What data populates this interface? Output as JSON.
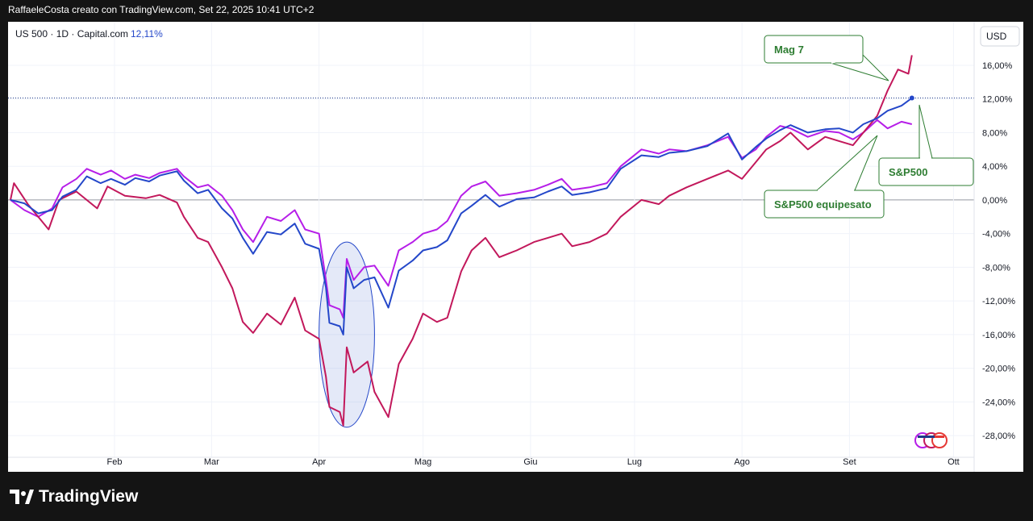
{
  "header": {
    "caption": "RaffaeleCosta creato con TradingView.com, Set 22, 2025 10:41 UTC+2"
  },
  "footer": {
    "brand": "TradingView"
  },
  "chart_data": {
    "type": "line",
    "symbol_line": "US 500 · 1D · Capital.com",
    "symbol_change": "12,11%",
    "currency_label": "USD",
    "y_unit": "%",
    "ylim": [
      -30,
      20.5
    ],
    "y_ticks": [
      {
        "value": 16,
        "label": "16,00%"
      },
      {
        "value": 12,
        "label": "12,00%"
      },
      {
        "value": 8,
        "label": "8,00%"
      },
      {
        "value": 4,
        "label": "4,00%"
      },
      {
        "value": 0,
        "label": "0,00%"
      },
      {
        "value": -4,
        "label": "-4,00%"
      },
      {
        "value": -8,
        "label": "-8,00%"
      },
      {
        "value": -12,
        "label": "-12,00%"
      },
      {
        "value": -16,
        "label": "-16,00%"
      },
      {
        "value": -20,
        "label": "-20,00%"
      },
      {
        "value": -24,
        "label": "-24,00%"
      },
      {
        "value": -28,
        "label": "-28,00%"
      }
    ],
    "x_range": [
      "2025-01-02",
      "2025-10-03"
    ],
    "x_ticks": [
      {
        "date": "2025-02-01",
        "label": "Feb"
      },
      {
        "date": "2025-03-01",
        "label": "Mar"
      },
      {
        "date": "2025-04-01",
        "label": "Apr"
      },
      {
        "date": "2025-05-01",
        "label": "Mag"
      },
      {
        "date": "2025-06-01",
        "label": "Giu"
      },
      {
        "date": "2025-07-01",
        "label": "Lug"
      },
      {
        "date": "2025-08-01",
        "label": "Ago"
      },
      {
        "date": "2025-09-01",
        "label": "Set"
      },
      {
        "date": "2025-10-01",
        "label": "Ott"
      }
    ],
    "price_line": {
      "value": 12.11,
      "color": "#1e3a8a"
    },
    "series": [
      {
        "name": "S&P500",
        "color": "#2447c9",
        "points": [
          [
            "2025-01-02",
            0
          ],
          [
            "2025-01-06",
            -0.4
          ],
          [
            "2025-01-10",
            -1.6
          ],
          [
            "2025-01-14",
            -1.2
          ],
          [
            "2025-01-17",
            0.4
          ],
          [
            "2025-01-21",
            1.2
          ],
          [
            "2025-01-24",
            2.8
          ],
          [
            "2025-01-28",
            2.0
          ],
          [
            "2025-01-31",
            2.5
          ],
          [
            "2025-02-04",
            1.8
          ],
          [
            "2025-02-07",
            2.6
          ],
          [
            "2025-02-11",
            2.2
          ],
          [
            "2025-02-14",
            2.9
          ],
          [
            "2025-02-19",
            3.4
          ],
          [
            "2025-02-21",
            2.3
          ],
          [
            "2025-02-25",
            0.8
          ],
          [
            "2025-02-28",
            1.2
          ],
          [
            "2025-03-04",
            -1.0
          ],
          [
            "2025-03-07",
            -2.2
          ],
          [
            "2025-03-10",
            -4.5
          ],
          [
            "2025-03-13",
            -6.4
          ],
          [
            "2025-03-17",
            -3.8
          ],
          [
            "2025-03-21",
            -4.1
          ],
          [
            "2025-03-25",
            -2.8
          ],
          [
            "2025-03-28",
            -5.2
          ],
          [
            "2025-04-01",
            -5.8
          ],
          [
            "2025-04-03",
            -10.4
          ],
          [
            "2025-04-04",
            -14.6
          ],
          [
            "2025-04-07",
            -15.0
          ],
          [
            "2025-04-08",
            -16.0
          ],
          [
            "2025-04-09",
            -8.0
          ],
          [
            "2025-04-11",
            -10.5
          ],
          [
            "2025-04-14",
            -9.5
          ],
          [
            "2025-04-17",
            -9.2
          ],
          [
            "2025-04-21",
            -12.8
          ],
          [
            "2025-04-24",
            -8.4
          ],
          [
            "2025-04-28",
            -7.2
          ],
          [
            "2025-05-01",
            -6.0
          ],
          [
            "2025-05-05",
            -5.6
          ],
          [
            "2025-05-08",
            -4.8
          ],
          [
            "2025-05-12",
            -1.6
          ],
          [
            "2025-05-15",
            -0.7
          ],
          [
            "2025-05-19",
            0.6
          ],
          [
            "2025-05-23",
            -0.8
          ],
          [
            "2025-05-28",
            0.1
          ],
          [
            "2025-06-02",
            0.3
          ],
          [
            "2025-06-06",
            1.0
          ],
          [
            "2025-06-10",
            1.6
          ],
          [
            "2025-06-13",
            0.6
          ],
          [
            "2025-06-18",
            0.9
          ],
          [
            "2025-06-23",
            1.4
          ],
          [
            "2025-06-27",
            3.7
          ],
          [
            "2025-07-03",
            5.3
          ],
          [
            "2025-07-08",
            5.1
          ],
          [
            "2025-07-11",
            5.6
          ],
          [
            "2025-07-16",
            5.8
          ],
          [
            "2025-07-22",
            6.4
          ],
          [
            "2025-07-28",
            7.9
          ],
          [
            "2025-08-01",
            4.8
          ],
          [
            "2025-08-05",
            6.3
          ],
          [
            "2025-08-08",
            7.3
          ],
          [
            "2025-08-12",
            8.3
          ],
          [
            "2025-08-15",
            8.9
          ],
          [
            "2025-08-20",
            8.0
          ],
          [
            "2025-08-25",
            8.4
          ],
          [
            "2025-08-29",
            8.5
          ],
          [
            "2025-09-02",
            8.0
          ],
          [
            "2025-09-05",
            9.0
          ],
          [
            "2025-09-09",
            9.7
          ],
          [
            "2025-09-12",
            10.6
          ],
          [
            "2025-09-16",
            11.2
          ],
          [
            "2025-09-19",
            12.11
          ]
        ]
      },
      {
        "name": "Mag 7",
        "color": "#c2185b",
        "points": [
          [
            "2025-01-02",
            0
          ],
          [
            "2025-01-03",
            2.0
          ],
          [
            "2025-01-07",
            -0.5
          ],
          [
            "2025-01-13",
            -3.5
          ],
          [
            "2025-01-16",
            0.0
          ],
          [
            "2025-01-21",
            1.0
          ],
          [
            "2025-01-27",
            -1.0
          ],
          [
            "2025-01-30",
            1.6
          ],
          [
            "2025-02-04",
            0.5
          ],
          [
            "2025-02-10",
            0.2
          ],
          [
            "2025-02-14",
            0.6
          ],
          [
            "2025-02-19",
            -0.3
          ],
          [
            "2025-02-21",
            -2.0
          ],
          [
            "2025-02-25",
            -4.5
          ],
          [
            "2025-02-28",
            -5.0
          ],
          [
            "2025-03-04",
            -8.0
          ],
          [
            "2025-03-07",
            -10.5
          ],
          [
            "2025-03-10",
            -14.5
          ],
          [
            "2025-03-13",
            -15.8
          ],
          [
            "2025-03-17",
            -13.5
          ],
          [
            "2025-03-21",
            -14.8
          ],
          [
            "2025-03-25",
            -11.6
          ],
          [
            "2025-03-28",
            -15.5
          ],
          [
            "2025-04-01",
            -16.5
          ],
          [
            "2025-04-03",
            -21.0
          ],
          [
            "2025-04-04",
            -24.6
          ],
          [
            "2025-04-07",
            -25.2
          ],
          [
            "2025-04-08",
            -26.8
          ],
          [
            "2025-04-09",
            -17.5
          ],
          [
            "2025-04-11",
            -20.5
          ],
          [
            "2025-04-15",
            -19.2
          ],
          [
            "2025-04-17",
            -22.8
          ],
          [
            "2025-04-21",
            -25.8
          ],
          [
            "2025-04-24",
            -19.5
          ],
          [
            "2025-04-28",
            -16.5
          ],
          [
            "2025-05-01",
            -13.5
          ],
          [
            "2025-05-05",
            -14.5
          ],
          [
            "2025-05-08",
            -14.0
          ],
          [
            "2025-05-12",
            -8.5
          ],
          [
            "2025-05-15",
            -6.0
          ],
          [
            "2025-05-19",
            -4.5
          ],
          [
            "2025-05-23",
            -6.8
          ],
          [
            "2025-05-28",
            -6.0
          ],
          [
            "2025-06-02",
            -5.0
          ],
          [
            "2025-06-06",
            -4.5
          ],
          [
            "2025-06-10",
            -4.0
          ],
          [
            "2025-06-13",
            -5.5
          ],
          [
            "2025-06-18",
            -5.0
          ],
          [
            "2025-06-23",
            -4.0
          ],
          [
            "2025-06-27",
            -2.0
          ],
          [
            "2025-07-03",
            0.0
          ],
          [
            "2025-07-08",
            -0.5
          ],
          [
            "2025-07-11",
            0.5
          ],
          [
            "2025-07-16",
            1.5
          ],
          [
            "2025-07-22",
            2.5
          ],
          [
            "2025-07-28",
            3.5
          ],
          [
            "2025-08-01",
            2.5
          ],
          [
            "2025-08-05",
            4.5
          ],
          [
            "2025-08-08",
            6.0
          ],
          [
            "2025-08-12",
            7.0
          ],
          [
            "2025-08-15",
            8.0
          ],
          [
            "2025-08-20",
            6.0
          ],
          [
            "2025-08-25",
            7.5
          ],
          [
            "2025-08-29",
            7.0
          ],
          [
            "2025-09-02",
            6.5
          ],
          [
            "2025-09-05",
            8.0
          ],
          [
            "2025-09-09",
            10.0
          ],
          [
            "2025-09-12",
            13.0
          ],
          [
            "2025-09-15",
            15.5
          ],
          [
            "2025-09-18",
            15.0
          ],
          [
            "2025-09-19",
            17.2
          ]
        ]
      },
      {
        "name": "S&P500 equipesato",
        "color": "#b61ee8",
        "points": [
          [
            "2025-01-02",
            0
          ],
          [
            "2025-01-06",
            -1.2
          ],
          [
            "2025-01-10",
            -2.0
          ],
          [
            "2025-01-14",
            -1.0
          ],
          [
            "2025-01-17",
            1.5
          ],
          [
            "2025-01-21",
            2.5
          ],
          [
            "2025-01-24",
            3.7
          ],
          [
            "2025-01-28",
            3.0
          ],
          [
            "2025-01-31",
            3.5
          ],
          [
            "2025-02-04",
            2.5
          ],
          [
            "2025-02-07",
            3.0
          ],
          [
            "2025-02-11",
            2.6
          ],
          [
            "2025-02-14",
            3.2
          ],
          [
            "2025-02-19",
            3.7
          ],
          [
            "2025-02-21",
            2.8
          ],
          [
            "2025-02-25",
            1.5
          ],
          [
            "2025-02-28",
            1.8
          ],
          [
            "2025-03-04",
            0.5
          ],
          [
            "2025-03-07",
            -1.2
          ],
          [
            "2025-03-10",
            -3.5
          ],
          [
            "2025-03-13",
            -5.0
          ],
          [
            "2025-03-17",
            -2.0
          ],
          [
            "2025-03-21",
            -2.5
          ],
          [
            "2025-03-25",
            -1.2
          ],
          [
            "2025-03-28",
            -3.5
          ],
          [
            "2025-04-01",
            -4.0
          ],
          [
            "2025-04-03",
            -9.5
          ],
          [
            "2025-04-04",
            -12.5
          ],
          [
            "2025-04-07",
            -13.0
          ],
          [
            "2025-04-08",
            -14.0
          ],
          [
            "2025-04-09",
            -7.0
          ],
          [
            "2025-04-11",
            -9.5
          ],
          [
            "2025-04-14",
            -8.0
          ],
          [
            "2025-04-17",
            -7.8
          ],
          [
            "2025-04-21",
            -10.2
          ],
          [
            "2025-04-24",
            -6.0
          ],
          [
            "2025-04-28",
            -5.0
          ],
          [
            "2025-05-01",
            -4.0
          ],
          [
            "2025-05-05",
            -3.5
          ],
          [
            "2025-05-08",
            -2.5
          ],
          [
            "2025-05-12",
            0.5
          ],
          [
            "2025-05-15",
            1.6
          ],
          [
            "2025-05-19",
            2.2
          ],
          [
            "2025-05-23",
            0.5
          ],
          [
            "2025-05-28",
            0.8
          ],
          [
            "2025-06-02",
            1.2
          ],
          [
            "2025-06-06",
            1.8
          ],
          [
            "2025-06-10",
            2.5
          ],
          [
            "2025-06-13",
            1.2
          ],
          [
            "2025-06-18",
            1.5
          ],
          [
            "2025-06-23",
            2.0
          ],
          [
            "2025-06-27",
            4.0
          ],
          [
            "2025-07-03",
            6.0
          ],
          [
            "2025-07-08",
            5.5
          ],
          [
            "2025-07-11",
            6.0
          ],
          [
            "2025-07-16",
            5.8
          ],
          [
            "2025-07-22",
            6.5
          ],
          [
            "2025-07-28",
            7.5
          ],
          [
            "2025-08-01",
            5.0
          ],
          [
            "2025-08-05",
            6.0
          ],
          [
            "2025-08-08",
            7.5
          ],
          [
            "2025-08-12",
            8.8
          ],
          [
            "2025-08-15",
            8.5
          ],
          [
            "2025-08-20",
            7.5
          ],
          [
            "2025-08-25",
            8.2
          ],
          [
            "2025-08-29",
            8.0
          ],
          [
            "2025-09-02",
            7.2
          ],
          [
            "2025-09-05",
            8.0
          ],
          [
            "2025-09-09",
            9.5
          ],
          [
            "2025-09-12",
            8.5
          ],
          [
            "2025-09-16",
            9.3
          ],
          [
            "2025-09-19",
            9.0
          ]
        ]
      }
    ],
    "annotations": [
      {
        "text": "Mag 7",
        "series": "Mag 7"
      },
      {
        "text": "S&P500",
        "series": "S&P500"
      },
      {
        "text": "S&P500 equipesato",
        "series": "S&P500 equipesato"
      }
    ],
    "highlight": {
      "from": "2025-04-01",
      "to": "2025-04-17",
      "y_range": [
        -27,
        -5
      ],
      "color": "#2447c9"
    },
    "annotation_color": "#2e7d32",
    "grid": true,
    "legend": "top-left"
  }
}
